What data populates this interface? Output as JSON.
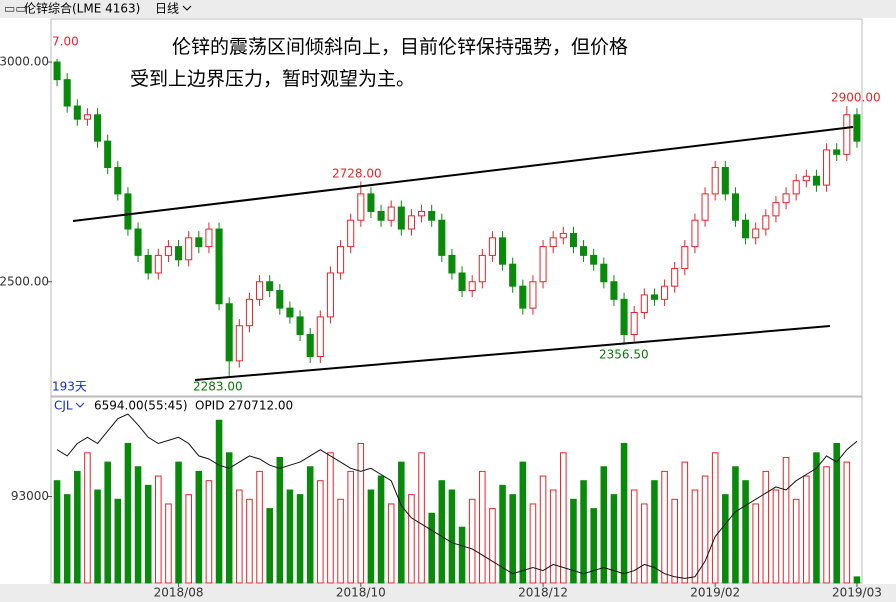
{
  "header": {
    "title": "伦锌综合(LME 4163)",
    "period": "日线"
  },
  "chart_data": {
    "type": "candlestick",
    "annotation_text": [
      "伦锌的震荡区间倾斜向上，目前伦锌保持强势，但价格",
      "受到上边界压力，暂时观望为主。"
    ],
    "annotations": [
      "7.00",
      "2728.00",
      "2900.00",
      "2283.00",
      "2356.50"
    ],
    "days_label": "193天",
    "up_color": "#e8242a",
    "down_color": "#0a8a0a",
    "categories": [
      null,
      null,
      null,
      null,
      null,
      null,
      null,
      null,
      null,
      null,
      null,
      null,
      "2018/08",
      null,
      null,
      null,
      null,
      null,
      null,
      null,
      null,
      null,
      null,
      null,
      null,
      null,
      null,
      null,
      null,
      null,
      "2018/10",
      null,
      null,
      null,
      null,
      null,
      null,
      null,
      null,
      null,
      null,
      null,
      null,
      null,
      null,
      null,
      null,
      null,
      "2018/12",
      null,
      null,
      null,
      null,
      null,
      null,
      null,
      null,
      null,
      null,
      null,
      null,
      null,
      null,
      null,
      null,
      "2019/02",
      null,
      null,
      null,
      null,
      null,
      null,
      null,
      null,
      null,
      null,
      null,
      null,
      null,
      "2019/03"
    ],
    "open": [
      3000,
      2960,
      2900,
      2870,
      2880,
      2820,
      2760,
      2700,
      2620,
      2560,
      2520,
      2560,
      2580,
      2550,
      2600,
      2580,
      2620,
      2450,
      2320,
      2400,
      2460,
      2500,
      2480,
      2440,
      2420,
      2380,
      2330,
      2420,
      2520,
      2580,
      2640,
      2700,
      2660,
      2640,
      2670,
      2620,
      2650,
      2660,
      2640,
      2560,
      2520,
      2480,
      2500,
      2560,
      2600,
      2540,
      2490,
      2440,
      2500,
      2580,
      2600,
      2610,
      2580,
      2560,
      2540,
      2500,
      2460,
      2380,
      2430,
      2470,
      2460,
      2490,
      2530,
      2580,
      2640,
      2700,
      2760,
      2700,
      2640,
      2600,
      2620,
      2650,
      2680,
      2700,
      2730,
      2740,
      2720,
      2800,
      2790,
      2880
    ],
    "high": [
      3007,
      2975,
      2915,
      2895,
      2895,
      2835,
      2775,
      2715,
      2635,
      2575,
      2575,
      2595,
      2595,
      2615,
      2615,
      2635,
      2635,
      2465,
      2415,
      2475,
      2515,
      2515,
      2495,
      2455,
      2435,
      2395,
      2435,
      2535,
      2595,
      2655,
      2728,
      2715,
      2675,
      2685,
      2685,
      2665,
      2675,
      2675,
      2655,
      2575,
      2535,
      2515,
      2575,
      2615,
      2615,
      2555,
      2505,
      2515,
      2595,
      2615,
      2625,
      2625,
      2595,
      2575,
      2555,
      2515,
      2475,
      2445,
      2485,
      2485,
      2505,
      2545,
      2595,
      2655,
      2715,
      2775,
      2775,
      2715,
      2655,
      2635,
      2665,
      2695,
      2715,
      2745,
      2755,
      2755,
      2815,
      2815,
      2900,
      2895
    ],
    "low": [
      2945,
      2885,
      2855,
      2855,
      2805,
      2745,
      2685,
      2605,
      2545,
      2505,
      2505,
      2545,
      2535,
      2535,
      2565,
      2565,
      2435,
      2283,
      2305,
      2385,
      2445,
      2465,
      2425,
      2405,
      2365,
      2315,
      2315,
      2405,
      2505,
      2565,
      2625,
      2645,
      2625,
      2625,
      2605,
      2605,
      2635,
      2625,
      2545,
      2505,
      2465,
      2465,
      2485,
      2545,
      2525,
      2475,
      2425,
      2425,
      2485,
      2565,
      2585,
      2565,
      2545,
      2525,
      2485,
      2445,
      2356.5,
      2365,
      2415,
      2445,
      2445,
      2475,
      2515,
      2565,
      2625,
      2685,
      2685,
      2625,
      2585,
      2585,
      2605,
      2635,
      2665,
      2685,
      2715,
      2705,
      2705,
      2775,
      2775,
      2805
    ],
    "close": [
      2960,
      2900,
      2870,
      2880,
      2820,
      2760,
      2700,
      2620,
      2560,
      2520,
      2560,
      2580,
      2550,
      2600,
      2580,
      2620,
      2450,
      2320,
      2400,
      2460,
      2500,
      2480,
      2440,
      2420,
      2380,
      2330,
      2420,
      2520,
      2580,
      2640,
      2700,
      2660,
      2640,
      2670,
      2620,
      2650,
      2660,
      2640,
      2560,
      2520,
      2480,
      2500,
      2560,
      2600,
      2540,
      2490,
      2440,
      2500,
      2580,
      2600,
      2610,
      2580,
      2560,
      2540,
      2500,
      2460,
      2380,
      2430,
      2470,
      2460,
      2490,
      2530,
      2580,
      2640,
      2700,
      2760,
      2700,
      2640,
      2600,
      2620,
      2650,
      2680,
      2700,
      2730,
      2740,
      2720,
      2800,
      2790,
      2880,
      2820
    ],
    "ylim": [
      2240,
      3098
    ],
    "yticks": [
      {
        "value": 3000,
        "label": "3000.00"
      },
      {
        "value": 2500,
        "label": "2500.00"
      }
    ],
    "volume_panel": {
      "labels": [
        "CJL",
        "6594.00(55:45)",
        "OPID 270712.00"
      ],
      "volume": [
        110000,
        95000,
        120000,
        140000,
        100000,
        130000,
        90000,
        150000,
        125000,
        105000,
        115000,
        85000,
        130000,
        95000,
        120000,
        110000,
        175000,
        140000,
        100000,
        90000,
        120000,
        80000,
        135000,
        100000,
        95000,
        125000,
        110000,
        140000,
        90000,
        120000,
        150000,
        100000,
        115000,
        85000,
        130000,
        95000,
        140000,
        75000,
        110000,
        100000,
        60000,
        90000,
        120000,
        80000,
        105000,
        95000,
        130000,
        85000,
        115000,
        100000,
        140000,
        90000,
        110000,
        80000,
        125000,
        95000,
        150000,
        100000,
        85000,
        110000,
        120000,
        90000,
        130000,
        100000,
        115000,
        140000,
        95000,
        125000,
        110000,
        85000,
        120000,
        100000,
        135000,
        90000,
        115000,
        140000,
        125000,
        150000,
        130000,
        6594
      ],
      "opid": [
        268000,
        266000,
        270000,
        272000,
        270000,
        274000,
        278000,
        279500,
        276000,
        272000,
        270000,
        271000,
        272000,
        270000,
        266000,
        265000,
        263000,
        262000,
        264000,
        266000,
        265000,
        263000,
        262000,
        263000,
        264000,
        266000,
        268000,
        266000,
        264000,
        262000,
        261000,
        262000,
        260000,
        258000,
        250000,
        246000,
        244000,
        242000,
        240000,
        238000,
        237000,
        236000,
        234000,
        232000,
        230000,
        228000,
        229000,
        230000,
        229000,
        231000,
        230000,
        229000,
        228000,
        229000,
        230000,
        229000,
        228000,
        229000,
        231000,
        230000,
        228000,
        227000,
        226500,
        227000,
        232000,
        240000,
        244000,
        248000,
        250000,
        252000,
        254000,
        256000,
        255000,
        258000,
        260000,
        262000,
        266000,
        264000,
        268000,
        270712
      ],
      "opid_color": "#111111",
      "ylim": [
        0,
        200000
      ],
      "yticks": [
        93000
      ],
      "y2lim": [
        225000,
        285000
      ]
    }
  }
}
